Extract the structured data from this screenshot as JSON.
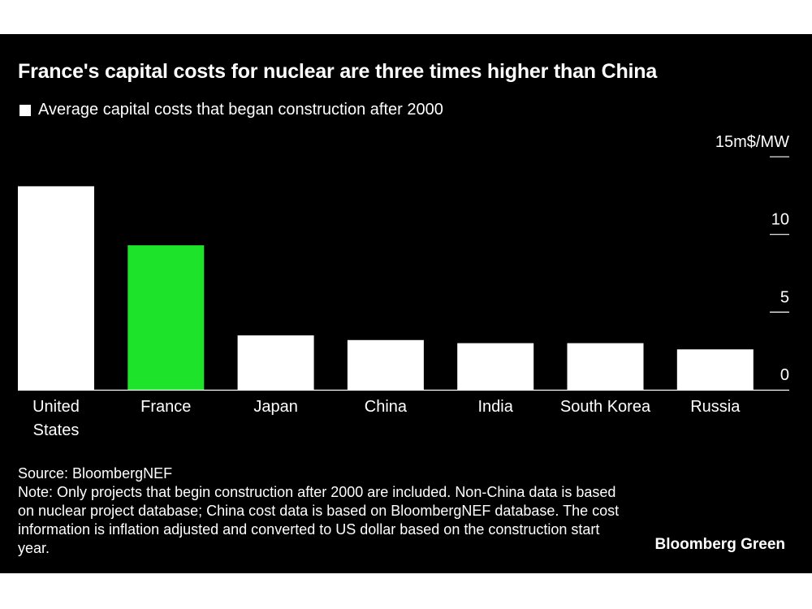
{
  "chart_data": {
    "type": "bar",
    "title": "France's capital costs for nuclear are three times higher than China",
    "legend": [
      {
        "label": "Average capital costs that began construction after 2000",
        "color": "#ffffff"
      }
    ],
    "categories": [
      [
        "United",
        "States"
      ],
      [
        "France"
      ],
      [
        "Japan"
      ],
      [
        "China"
      ],
      [
        "India"
      ],
      [
        "South Korea"
      ],
      [
        "Russia"
      ]
    ],
    "values": [
      13.1,
      9.3,
      3.5,
      3.2,
      3.0,
      3.0,
      2.6
    ],
    "bar_colors": [
      "#ffffff",
      "#1de42b",
      "#ffffff",
      "#ffffff",
      "#ffffff",
      "#ffffff",
      "#ffffff"
    ],
    "highlight_color": "#1de42b",
    "ylim": [
      0,
      15
    ],
    "yticks": [
      {
        "value": 15,
        "label": "15m$/MW"
      },
      {
        "value": 10,
        "label": "10"
      },
      {
        "value": 5,
        "label": "5"
      },
      {
        "value": 0,
        "label": "0"
      }
    ],
    "axis_side": "right",
    "grid": false
  },
  "footnotes": {
    "source": "Source: BloombergNEF",
    "note": "Note: Only projects that begin construction after 2000 are included. Non-China data is based on nuclear project database; China cost data is based on BloombergNEF database. The cost information is inflation adjusted and converted to US dollar based on the construction start year."
  },
  "brand": "Bloomberg Green"
}
